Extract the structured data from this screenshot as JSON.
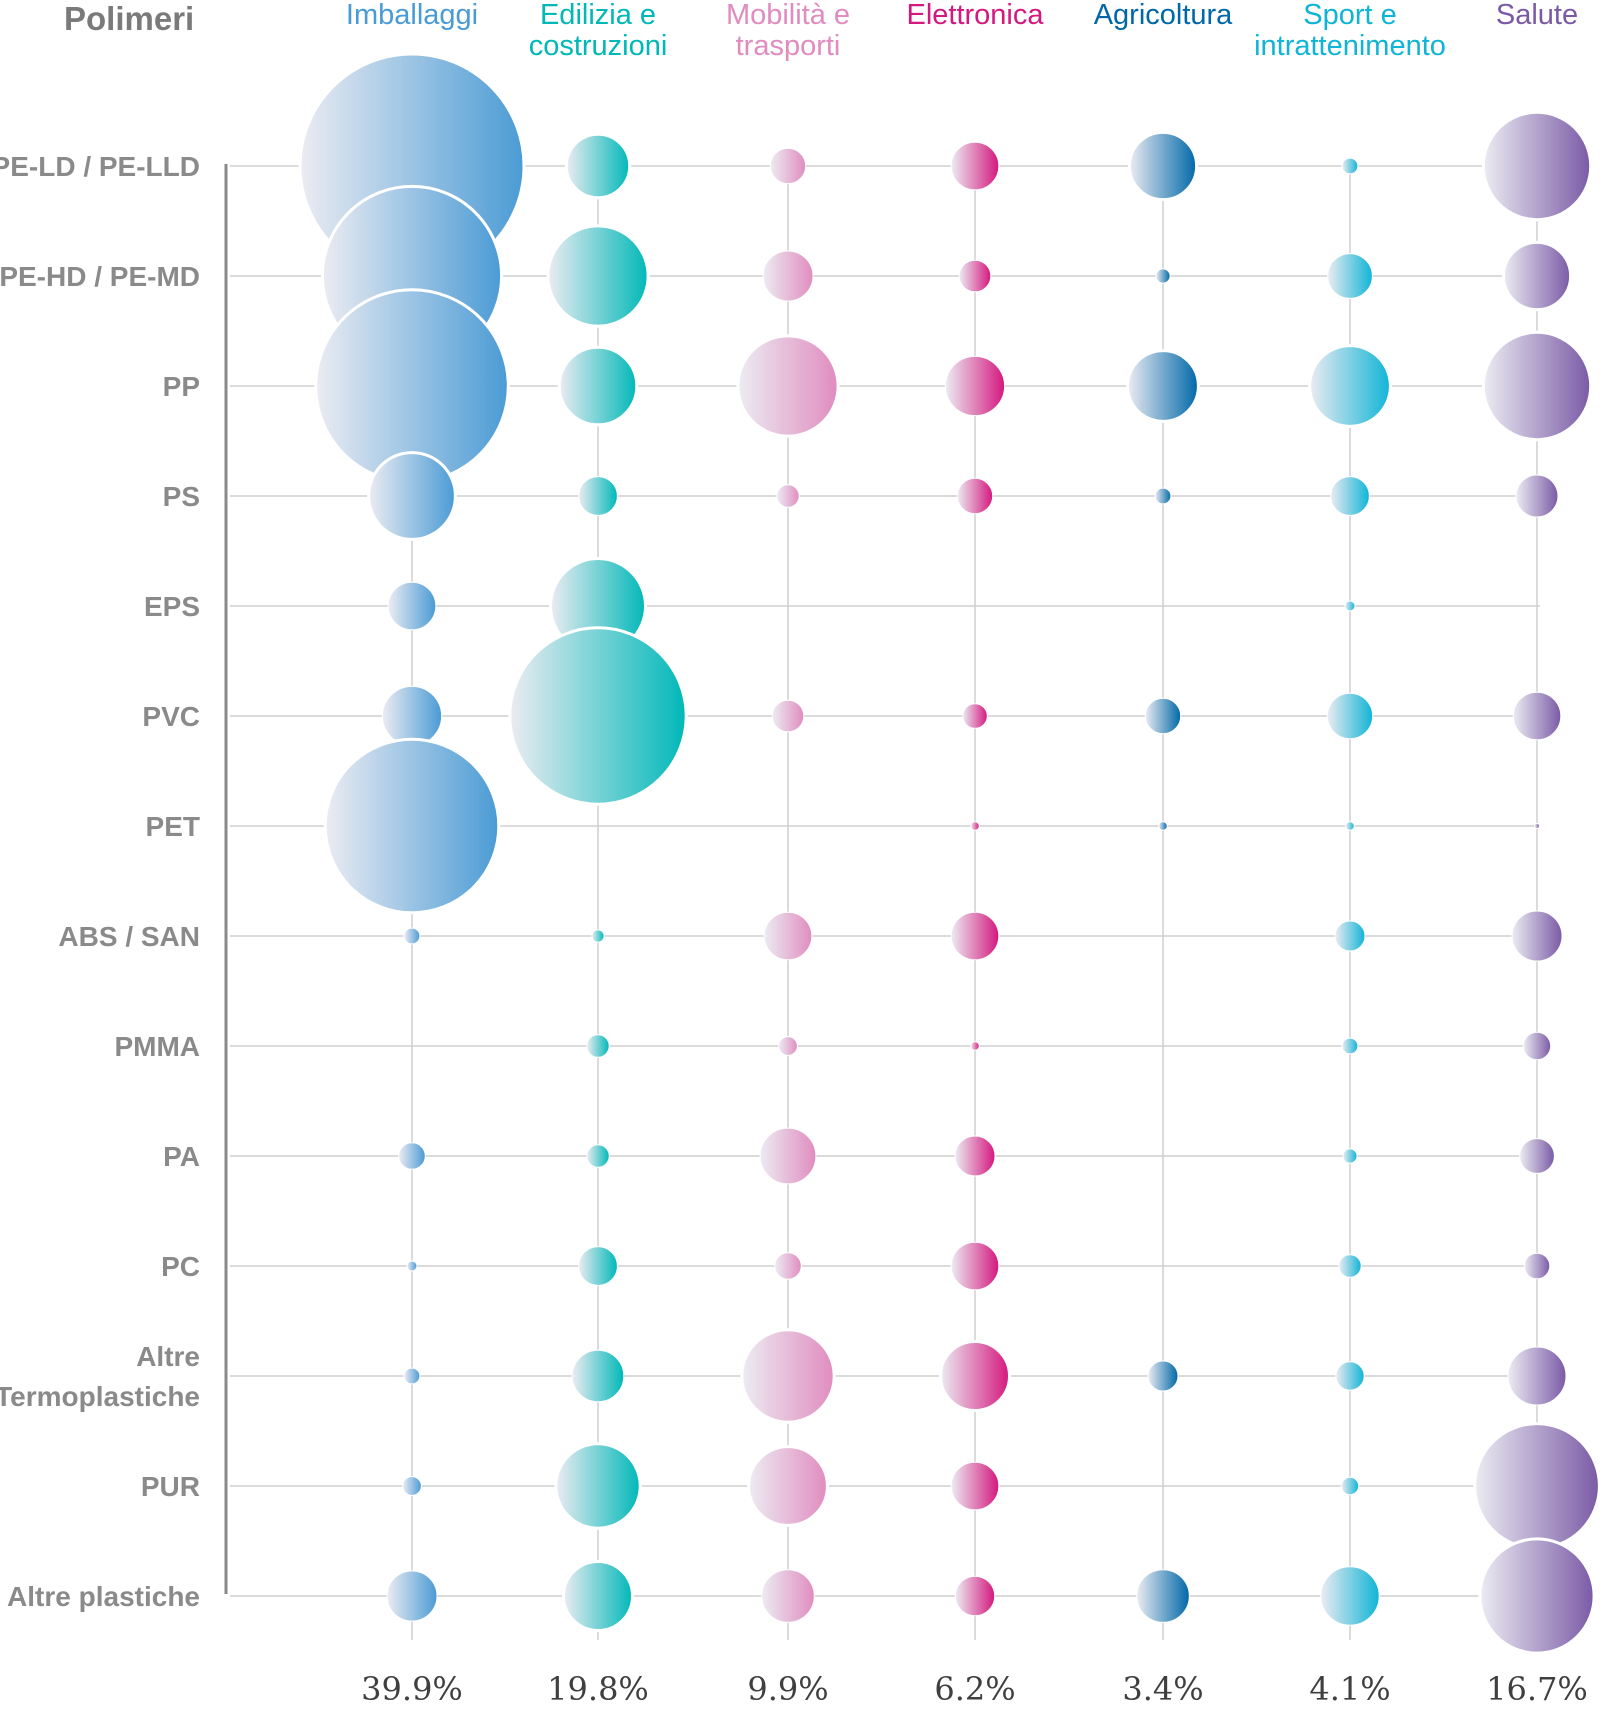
{
  "chart_data": {
    "type": "bubble-matrix",
    "row_axis_title": "Polimeri",
    "columns": [
      {
        "name": "Imballaggi",
        "lines": [
          "Imballaggi"
        ],
        "total": "39.9%",
        "color": "#4a9bd5"
      },
      {
        "name": "Edilizia e costruzioni",
        "lines": [
          "Edilizia e",
          "costruzioni"
        ],
        "total": "19.8%",
        "color": "#00b8b8"
      },
      {
        "name": "Mobilità e trasporti",
        "lines": [
          "Mobilità e",
          "trasporti"
        ],
        "total": "9.9%",
        "color": "#e08cbf"
      },
      {
        "name": "Elettronica",
        "lines": [
          "Elettronica"
        ],
        "total": "6.2%",
        "color": "#d4187e"
      },
      {
        "name": "Agricoltura",
        "lines": [
          "Agricoltura"
        ],
        "total": "3.4%",
        "color": "#0068a8"
      },
      {
        "name": "Sport e intrattenimento",
        "lines": [
          "Sport e",
          "intrattenimento"
        ],
        "total": "4.1%",
        "color": "#10b4d6"
      },
      {
        "name": "Salute",
        "lines": [
          "Salute"
        ],
        "total": "16.7%",
        "color": "#7a5aa6"
      }
    ],
    "rows": [
      {
        "name": "PE-LD / PE-LLD",
        "lines": [
          "PE-LD / PE-LLD"
        ]
      },
      {
        "name": "PE-HD / PE-MD",
        "lines": [
          "PE-HD / PE-MD"
        ]
      },
      {
        "name": "PP",
        "lines": [
          "PP"
        ]
      },
      {
        "name": "PS",
        "lines": [
          "PS"
        ]
      },
      {
        "name": "EPS",
        "lines": [
          "EPS"
        ]
      },
      {
        "name": "PVC",
        "lines": [
          "PVC"
        ]
      },
      {
        "name": "PET",
        "lines": [
          "PET"
        ]
      },
      {
        "name": "ABS / SAN",
        "lines": [
          "ABS / SAN"
        ]
      },
      {
        "name": "PMMA",
        "lines": [
          "PMMA"
        ]
      },
      {
        "name": "PA",
        "lines": [
          "PA"
        ]
      },
      {
        "name": "PC",
        "lines": [
          "PC"
        ]
      },
      {
        "name": "Altre Termoplastiche",
        "lines": [
          "Altre",
          "Termoplastiche"
        ]
      },
      {
        "name": "PUR",
        "lines": [
          "PUR"
        ]
      },
      {
        "name": "Altre plastiche",
        "lines": [
          "Altre plastiche"
        ]
      }
    ],
    "values_unit": "relative share (bubble area)",
    "values": [
      [
        100,
        8,
        2.5,
        4.5,
        9,
        0.5,
        23
      ],
      [
        64,
        20,
        5,
        2,
        0.4,
        4,
        9
      ],
      [
        74,
        12,
        20,
        7,
        10,
        13,
        23
      ],
      [
        15,
        3,
        1,
        2.5,
        0.5,
        3,
        3.5
      ],
      [
        4.5,
        18,
        0,
        0,
        0,
        0.2,
        0
      ],
      [
        7,
        62,
        2,
        1.2,
        2.5,
        4.1,
        4.5
      ],
      [
        60,
        0,
        0,
        0.15,
        0.15,
        0.15,
        0.05
      ],
      [
        0.5,
        0.3,
        4.5,
        4.5,
        0,
        1.8,
        5
      ],
      [
        0,
        1,
        0.7,
        0.15,
        0,
        0.5,
        1.5
      ],
      [
        1.4,
        1,
        6.2,
        3.2,
        0,
        0.4,
        2.4
      ],
      [
        0.2,
        3,
        1.4,
        4.5,
        0,
        1,
        1.3
      ],
      [
        0.5,
        5.3,
        17,
        9.5,
        1.8,
        1.6,
        6.7
      ],
      [
        0.7,
        14.2,
        12.4,
        4.5,
        0,
        0.6,
        31
      ],
      [
        5,
        9.5,
        5.5,
        3.1,
        5.5,
        6.8,
        26
      ]
    ]
  }
}
